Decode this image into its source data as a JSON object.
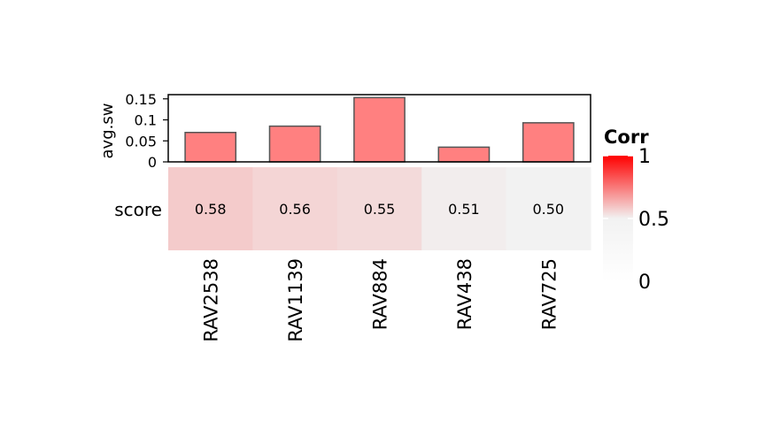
{
  "chart_data": {
    "type": "heatmap",
    "categories": [
      "RAV2538",
      "RAV1139",
      "RAV884",
      "RAV438",
      "RAV725"
    ],
    "heatmap": {
      "row_label": "score",
      "values": [
        0.58,
        0.56,
        0.55,
        0.51,
        0.5
      ],
      "value_labels": [
        "0.58",
        "0.56",
        "0.55",
        "0.51",
        "0.50"
      ]
    },
    "bar_annotation": {
      "ylabel": "avg.sw",
      "values": [
        0.07,
        0.085,
        0.153,
        0.035,
        0.093
      ],
      "ylim": [
        0,
        0.16
      ],
      "ticks": [
        0,
        0.05,
        0.1,
        0.15
      ],
      "tick_labels": [
        "0",
        "0.05",
        "0.1",
        "0.15"
      ],
      "bar_color": "#ff8080",
      "bar_border_color": "#555555"
    },
    "legend": {
      "title": "Corr",
      "placement": "right",
      "range": [
        0,
        1
      ],
      "ticks": [
        0,
        0.5,
        1
      ],
      "tick_labels": [
        "0",
        "0.5",
        "1"
      ],
      "colors": {
        "low": "#ffffff",
        "mid": "#f2f2f2",
        "high": "#ff0000"
      }
    }
  }
}
